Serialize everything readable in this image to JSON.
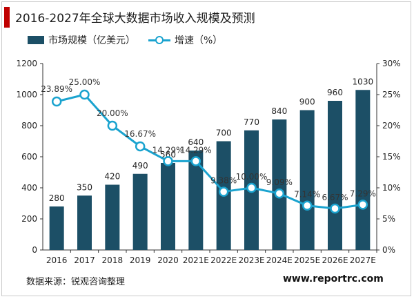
{
  "title": "2016-2027年全球大数据市场收入规模及预测",
  "colors": {
    "accent": "#c00000",
    "bar": "#1c4f66",
    "line": "#1aa3cf",
    "text": "#222222",
    "axis": "#333333"
  },
  "source": "数据来源：锐观咨询整理",
  "website": "www.reportrc.com",
  "chart_data": {
    "type": "bar+line",
    "categories": [
      "2016",
      "2017",
      "2018",
      "2019",
      "2020",
      "2021E",
      "2022E",
      "2023E",
      "2024E",
      "2025E",
      "2026E",
      "2027E"
    ],
    "series": [
      {
        "name": "市场规模（亿美元）",
        "type": "bar",
        "axis": "left",
        "values": [
          280,
          350,
          420,
          490,
          560,
          640,
          700,
          770,
          840,
          900,
          960,
          1030
        ],
        "labels": [
          "280",
          "350",
          "420",
          "490",
          "560",
          "640",
          "700",
          "770",
          "840",
          "900",
          "960",
          "1030"
        ]
      },
      {
        "name": "增速（%）",
        "type": "line",
        "axis": "right",
        "values": [
          23.89,
          25.0,
          20.0,
          16.67,
          14.29,
          14.29,
          9.38,
          10.0,
          9.09,
          7.14,
          6.67,
          7.29
        ],
        "labels": [
          "23.89%",
          "25.00%",
          "20.00%",
          "16.67%",
          "14.29%",
          "14.29%",
          "9.38%",
          "10.00%",
          "9.09%",
          "7.14%",
          "6.67%",
          "7.29%"
        ]
      }
    ],
    "y_left": {
      "min": 0,
      "max": 1200,
      "ticks": [
        "0",
        "200",
        "400",
        "600",
        "800",
        "1000",
        "1200"
      ]
    },
    "y_right": {
      "min": 0,
      "max": 30,
      "ticks": [
        "0%",
        "5%",
        "10%",
        "15%",
        "20%",
        "25%",
        "30%"
      ]
    },
    "legend_position": "top-left",
    "grid": false
  }
}
